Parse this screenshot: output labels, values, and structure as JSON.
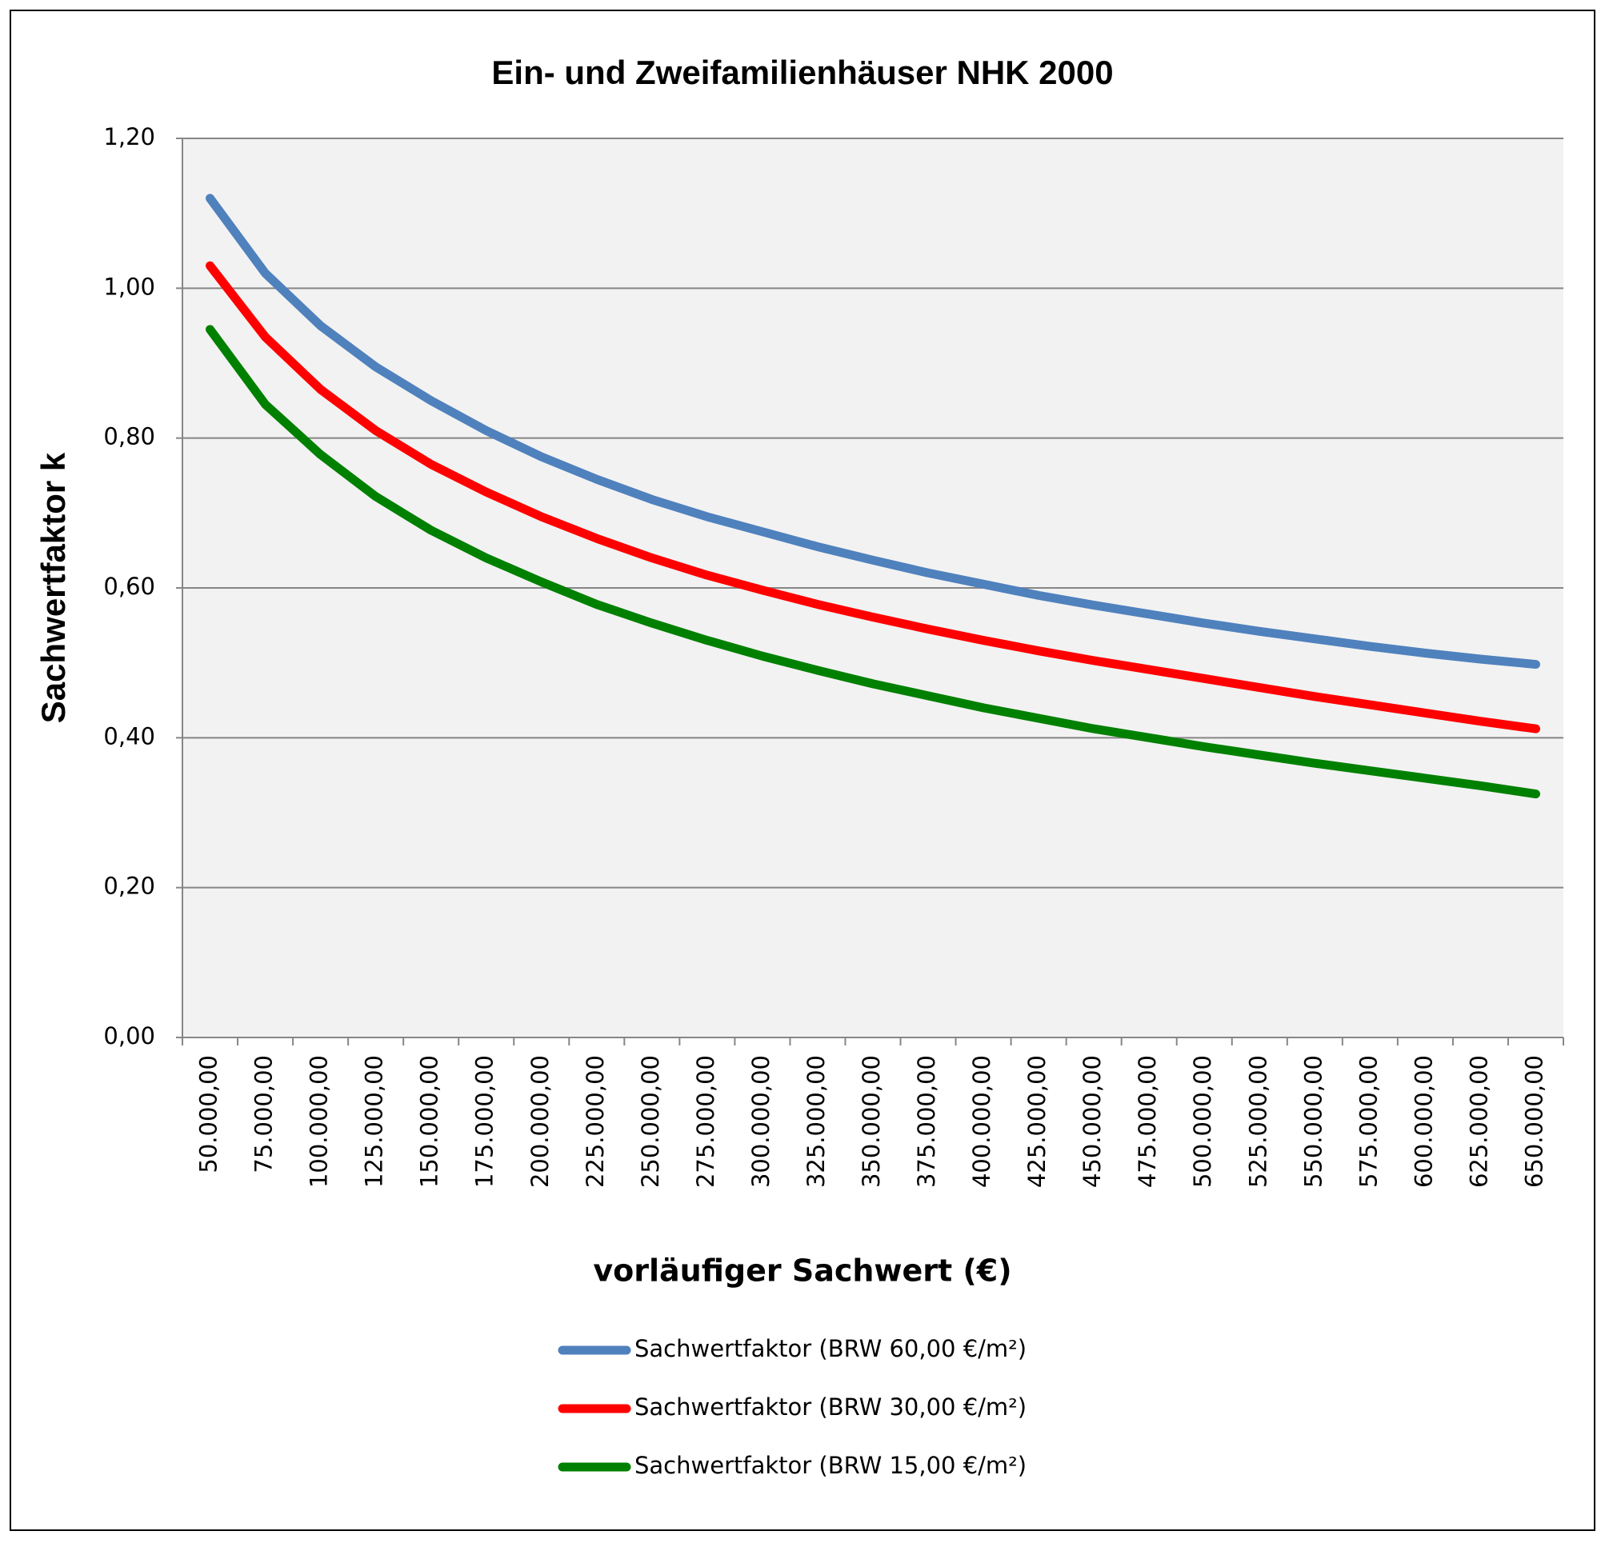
{
  "chart_data": {
    "type": "line",
    "title": "Ein- und Zweifamilienhäuser NHK 2000",
    "x_label": "vorläufiger Sachwert (€)",
    "y_label": "Sachwertfaktor k",
    "categories": [
      "50.000,00",
      "75.000,00",
      "100.000,00",
      "125.000,00",
      "150.000,00",
      "175.000,00",
      "200.000,00",
      "225.000,00",
      "250.000,00",
      "275.000,00",
      "300.000,00",
      "325.000,00",
      "350.000,00",
      "375.000,00",
      "400.000,00",
      "425.000,00",
      "450.000,00",
      "475.000,00",
      "500.000,00",
      "525.000,00",
      "550.000,00",
      "575.000,00",
      "600.000,00",
      "625.000,00",
      "650.000,00"
    ],
    "series": [
      {
        "name": "Sachwertfaktor (BRW 60,00 €/m²)",
        "color": "#4f81bd",
        "values": [
          1.12,
          1.02,
          0.95,
          0.895,
          0.85,
          0.81,
          0.775,
          0.745,
          0.718,
          0.695,
          0.675,
          0.655,
          0.637,
          0.62,
          0.605,
          0.59,
          0.577,
          0.565,
          0.553,
          0.542,
          0.532,
          0.522,
          0.513,
          0.505,
          0.498
        ]
      },
      {
        "name": "Sachwertfaktor  (BRW 30,00 €/m²)",
        "color": "#ff0000",
        "values": [
          1.03,
          0.935,
          0.865,
          0.81,
          0.765,
          0.728,
          0.695,
          0.666,
          0.64,
          0.617,
          0.597,
          0.578,
          0.561,
          0.545,
          0.53,
          0.516,
          0.503,
          0.491,
          0.479,
          0.467,
          0.455,
          0.444,
          0.433,
          0.422,
          0.412
        ]
      },
      {
        "name": "Sachwertfaktor  (BRW 15,00 €/m²)",
        "color": "#008000",
        "values": [
          0.945,
          0.845,
          0.778,
          0.722,
          0.677,
          0.64,
          0.608,
          0.578,
          0.553,
          0.53,
          0.509,
          0.49,
          0.472,
          0.456,
          0.44,
          0.426,
          0.412,
          0.4,
          0.388,
          0.377,
          0.366,
          0.356,
          0.346,
          0.336,
          0.325
        ]
      }
    ],
    "ylim": [
      0,
      1.2
    ],
    "yticks": [
      {
        "value": 0,
        "label": "0,00"
      },
      {
        "value": 0.2,
        "label": "0,20"
      },
      {
        "value": 0.4,
        "label": "0,40"
      },
      {
        "value": 0.6,
        "label": "0,60"
      },
      {
        "value": 0.8,
        "label": "0,80"
      },
      {
        "value": 1,
        "label": "1,00"
      },
      {
        "value": 1.2,
        "label": "1,20"
      }
    ],
    "grid": true,
    "legend_position": "bottom"
  }
}
